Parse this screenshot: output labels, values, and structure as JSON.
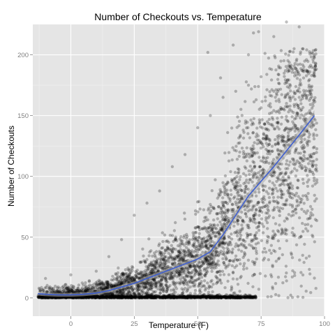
{
  "chart_data": {
    "type": "scatter",
    "title": "Number of Checkouts vs. Temperature",
    "xlabel": "Temperature (F)",
    "ylabel": "Number of Checkouts",
    "xlim": [
      -15,
      100
    ],
    "ylim": [
      -15,
      225
    ],
    "xticks": [
      0,
      25,
      50,
      75,
      100
    ],
    "yticks": [
      0,
      50,
      100,
      150,
      200
    ],
    "grid": true,
    "background": "#e5e5e5",
    "gridline_color": "#ffffff",
    "point_color": "#000000",
    "point_opacity": 0.25,
    "trend_color": "#3f5fd0",
    "band_color": "#a9a9a9",
    "trend_line": {
      "x": [
        -13,
        -10,
        -5,
        0,
        5,
        10,
        15,
        20,
        25,
        30,
        35,
        40,
        45,
        50,
        55,
        60,
        65,
        70,
        75,
        80,
        85,
        90,
        96
      ],
      "y": [
        3.5,
        3,
        2.5,
        2.5,
        3,
        4,
        6,
        9,
        12,
        16,
        20,
        24,
        28,
        32,
        38,
        52,
        68,
        84,
        96,
        108,
        121,
        134,
        150
      ]
    },
    "outlier_points": [
      {
        "x": 66,
        "y": 229
      },
      {
        "x": 85,
        "y": 227
      },
      {
        "x": 90,
        "y": 223
      },
      {
        "x": 74,
        "y": 219
      },
      {
        "x": 72,
        "y": 218
      },
      {
        "x": 54,
        "y": 202
      },
      {
        "x": 64,
        "y": 208
      },
      {
        "x": 80,
        "y": 215
      },
      {
        "x": 88,
        "y": 205
      },
      {
        "x": 94,
        "y": 190
      },
      {
        "x": 59,
        "y": 181
      },
      {
        "x": 70,
        "y": 200
      }
    ],
    "sample_points": [
      {
        "x": -12,
        "y": 6
      },
      {
        "x": -10,
        "y": 16
      },
      {
        "x": -8,
        "y": 2
      },
      {
        "x": -5,
        "y": 9
      },
      {
        "x": -2,
        "y": 11
      },
      {
        "x": 0,
        "y": 19
      },
      {
        "x": 3,
        "y": 5
      },
      {
        "x": 10,
        "y": 22
      },
      {
        "x": 15,
        "y": 34
      },
      {
        "x": 20,
        "y": 48
      },
      {
        "x": 25,
        "y": 68
      },
      {
        "x": 30,
        "y": 78
      },
      {
        "x": 35,
        "y": 88
      },
      {
        "x": 40,
        "y": 108
      },
      {
        "x": 45,
        "y": 118
      },
      {
        "x": 50,
        "y": 140
      },
      {
        "x": 55,
        "y": 150
      },
      {
        "x": 60,
        "y": 165
      },
      {
        "x": 65,
        "y": 170
      },
      {
        "x": 70,
        "y": 175
      },
      {
        "x": 75,
        "y": 182
      },
      {
        "x": 80,
        "y": 170
      },
      {
        "x": 85,
        "y": 160
      },
      {
        "x": 90,
        "y": 165
      },
      {
        "x": 95,
        "y": 110
      },
      {
        "x": 97,
        "y": 95
      }
    ]
  }
}
